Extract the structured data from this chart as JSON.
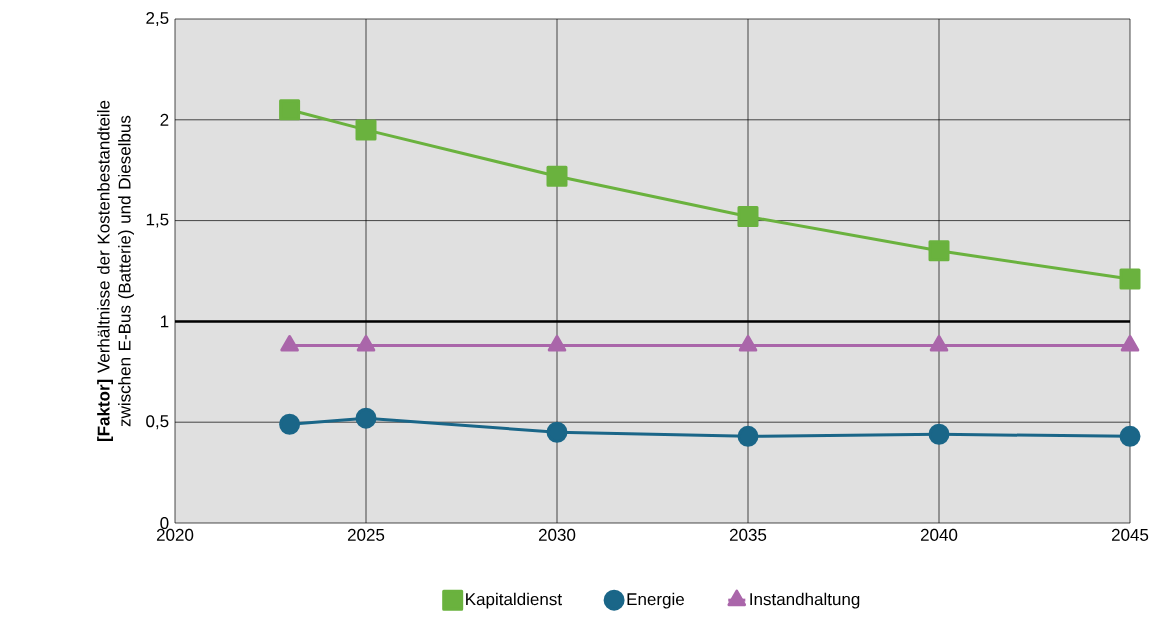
{
  "chart_data": {
    "type": "line",
    "ylabel": "**[Faktor]** Verhältnisse der Kostenbestandteile zwischen E-Bus (Batterie) und Dieselbus",
    "x": [
      2023,
      2025,
      2030,
      2035,
      2040,
      2045
    ],
    "series": [
      {
        "name": "Kapitaldienst",
        "color": "#6ab23e",
        "marker": "square",
        "values": [
          2.05,
          1.95,
          1.72,
          1.52,
          1.35,
          1.21
        ]
      },
      {
        "name": "Energie",
        "color": "#1a6688",
        "marker": "circle",
        "values": [
          0.49,
          0.52,
          0.45,
          0.43,
          0.44,
          0.43
        ]
      },
      {
        "name": "Instandhaltung",
        "color": "#aa66aa",
        "marker": "triangle",
        "values": [
          0.88,
          0.88,
          0.88,
          0.88,
          0.88,
          0.88
        ]
      }
    ],
    "xlim": [
      2020,
      2045
    ],
    "ylim": [
      0,
      2.5
    ],
    "xticks": [
      2020,
      2025,
      2030,
      2035,
      2040,
      2045
    ],
    "yticks": [
      0,
      {
        "value": 0.5,
        "label": "0,5"
      },
      1,
      {
        "value": 1.5,
        "label": "1,5"
      },
      2,
      {
        "value": 2.5,
        "label": "2,5"
      }
    ],
    "ref_lines": [
      {
        "axis": "y",
        "value": 1,
        "color": "#000000"
      }
    ],
    "grid": true,
    "legend": "bottom",
    "line_style": "solid"
  }
}
